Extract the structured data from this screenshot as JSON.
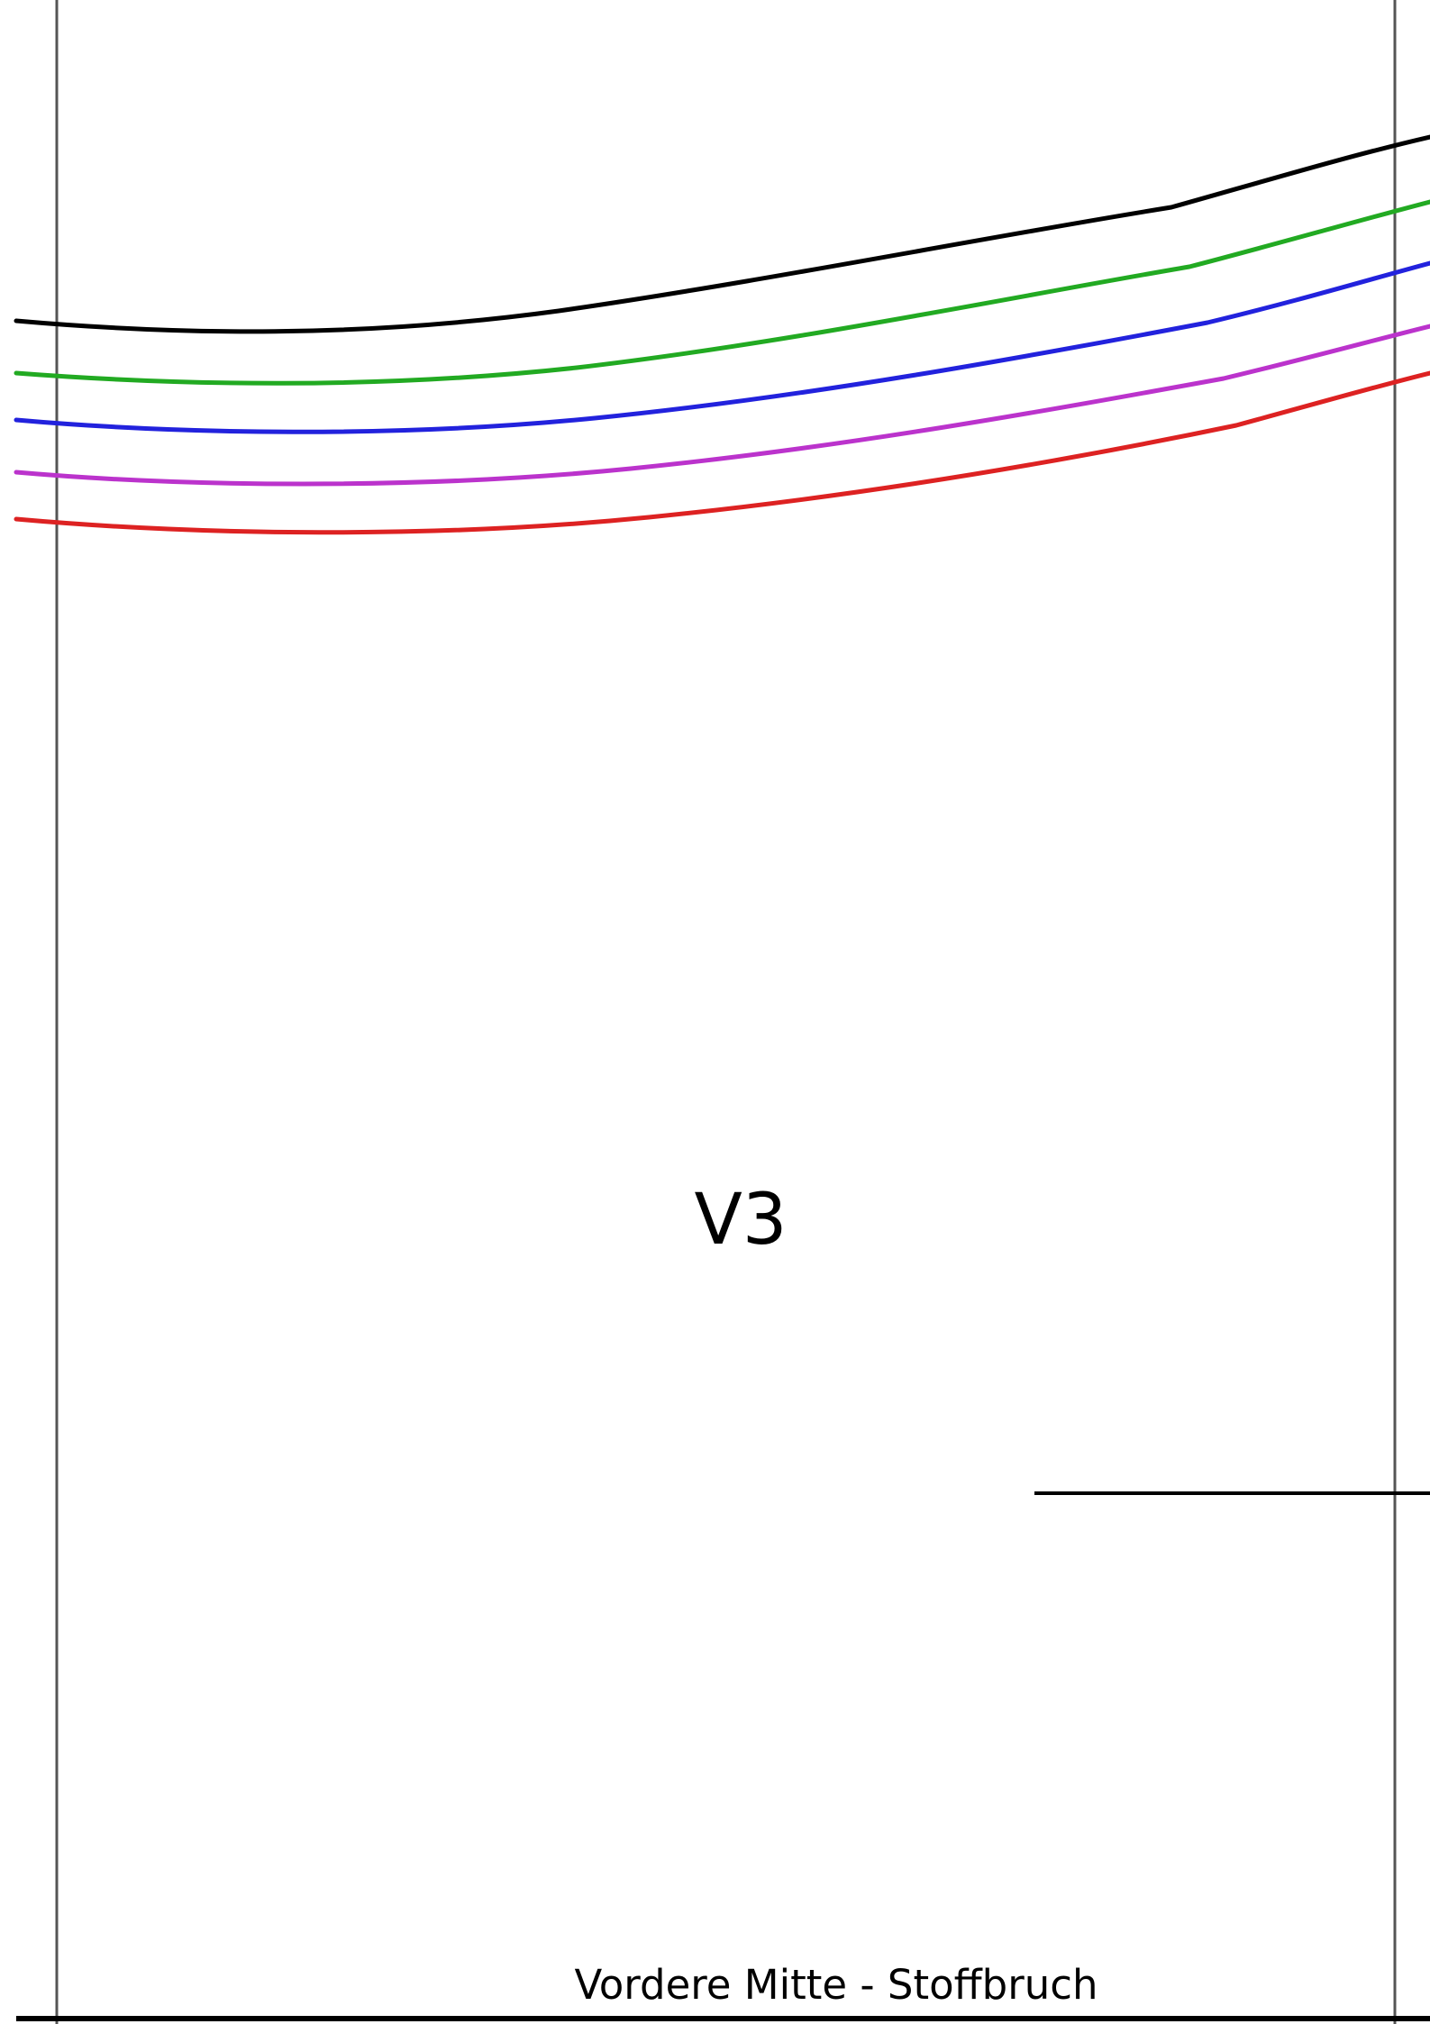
{
  "pattern": {
    "piece_label": "V3",
    "fold_label": "Vordere Mitte - Stoffbruch"
  },
  "colors": {
    "background": "#ffffff",
    "page_border": "#555555",
    "outline": "#000000",
    "size_lines": [
      "#000000",
      "#22aa22",
      "#2222dd",
      "#bb33cc",
      "#dd2222"
    ]
  }
}
